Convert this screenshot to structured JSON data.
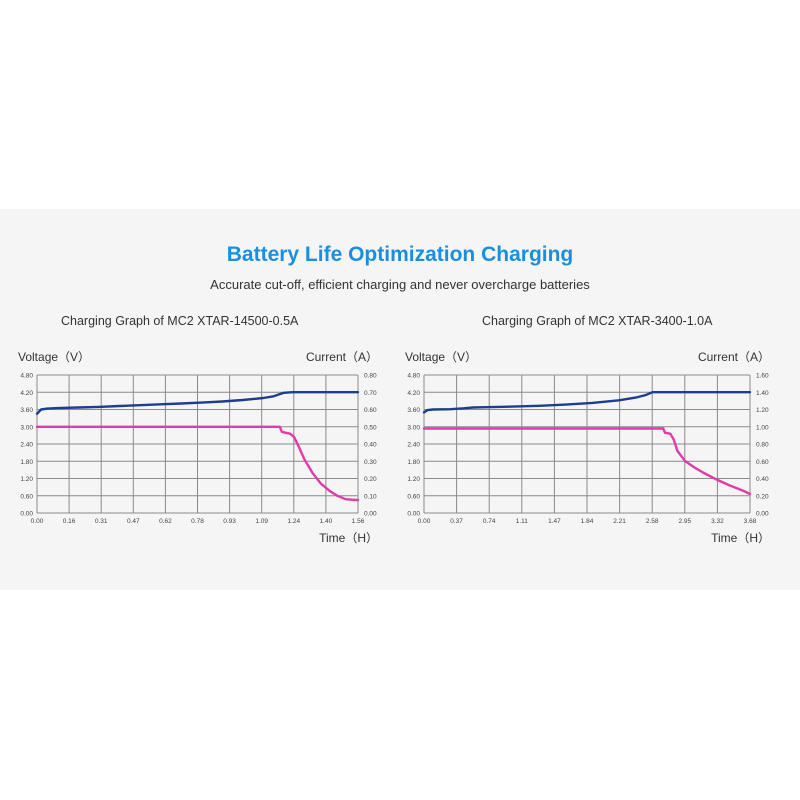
{
  "header": {
    "title": "Battery Life Optimization Charging",
    "subtitle": "Accurate cut-off, efficient charging and never overcharge batteries"
  },
  "colors": {
    "title": "#1a8fe0",
    "voltage_series": "#1e3d8f",
    "current_series": "#e23aa8",
    "grid": "#8a8a8a",
    "background_band": "#f5f5f5"
  },
  "chart_data": [
    {
      "type": "line",
      "title": "Charging Graph of MC2 XTAR-14500-0.5A",
      "ylabel": "Voltage（V）",
      "y2label": "Current（A）",
      "xlabel": "Time（H）",
      "x_ticks": [
        "0.00",
        "0.16",
        "0.31",
        "0.47",
        "0.62",
        "0.78",
        "0.93",
        "1.09",
        "1.24",
        "1.40",
        "1.56"
      ],
      "y_ticks": [
        "0.00",
        "0.60",
        "1.20",
        "1.80",
        "2.40",
        "3.00",
        "3.60",
        "4.20",
        "4.80"
      ],
      "y2_ticks": [
        "0.00",
        "0.10",
        "0.20",
        "0.30",
        "0.40",
        "0.50",
        "0.60",
        "0.70",
        "0.80"
      ],
      "xlim": [
        0,
        1.56
      ],
      "ylim": [
        0,
        4.8
      ],
      "y2lim": [
        0,
        0.8
      ],
      "grid": true,
      "series": [
        {
          "axis": "left",
          "x": [
            0,
            0.02,
            0.05,
            0.1,
            0.2,
            0.3,
            0.4,
            0.5,
            0.6,
            0.7,
            0.8,
            0.9,
            1.0,
            1.1,
            1.15,
            1.2,
            1.24,
            1.3,
            1.4,
            1.5,
            1.56
          ],
          "y": [
            3.45,
            3.6,
            3.63,
            3.65,
            3.67,
            3.69,
            3.72,
            3.75,
            3.78,
            3.81,
            3.84,
            3.88,
            3.93,
            4.0,
            4.06,
            4.18,
            4.2,
            4.2,
            4.2,
            4.2,
            4.2
          ]
        },
        {
          "axis": "right",
          "x": [
            0,
            0.2,
            0.4,
            0.6,
            0.8,
            1.0,
            1.18,
            1.19,
            1.23,
            1.25,
            1.27,
            1.3,
            1.34,
            1.38,
            1.42,
            1.46,
            1.5,
            1.53,
            1.56
          ],
          "y": [
            0.5,
            0.5,
            0.5,
            0.5,
            0.5,
            0.5,
            0.5,
            0.47,
            0.46,
            0.44,
            0.39,
            0.31,
            0.23,
            0.17,
            0.13,
            0.1,
            0.08,
            0.077,
            0.075
          ]
        }
      ]
    },
    {
      "type": "line",
      "title": "Charging Graph of MC2 XTAR-3400-1.0A",
      "ylabel": "Voltage（V）",
      "y2label": "Current（A）",
      "xlabel": "Time（H）",
      "x_ticks": [
        "0.00",
        "0.37",
        "0.74",
        "1.11",
        "1.47",
        "1.84",
        "2.21",
        "2.58",
        "2.95",
        "3.32",
        "3.68"
      ],
      "y_ticks": [
        "0.00",
        "0.60",
        "1.20",
        "1.80",
        "2.40",
        "3.00",
        "3.60",
        "4.20",
        "4.80"
      ],
      "y2_ticks": [
        "0.00",
        "0.20",
        "0.40",
        "0.60",
        "0.80",
        "1.00",
        "1.20",
        "1.40",
        "1.60"
      ],
      "xlim": [
        0,
        3.68
      ],
      "ylim": [
        0,
        4.8
      ],
      "y2lim": [
        0,
        1.6
      ],
      "grid": true,
      "series": [
        {
          "axis": "left",
          "x": [
            0,
            0.04,
            0.1,
            0.3,
            0.45,
            0.55,
            0.7,
            1.0,
            1.3,
            1.6,
            1.9,
            2.2,
            2.4,
            2.5,
            2.58,
            2.65,
            2.8,
            3.0,
            3.3,
            3.68
          ],
          "y": [
            3.5,
            3.58,
            3.6,
            3.61,
            3.64,
            3.67,
            3.68,
            3.7,
            3.73,
            3.77,
            3.83,
            3.92,
            4.02,
            4.1,
            4.2,
            4.2,
            4.2,
            4.2,
            4.2,
            4.2
          ]
        },
        {
          "axis": "right",
          "x": [
            0,
            0.5,
            1.0,
            1.5,
            2.0,
            2.5,
            2.7,
            2.72,
            2.78,
            2.82,
            2.86,
            2.95,
            3.05,
            3.15,
            3.3,
            3.45,
            3.6,
            3.68
          ],
          "y": [
            0.98,
            0.98,
            0.98,
            0.98,
            0.98,
            0.98,
            0.98,
            0.93,
            0.92,
            0.85,
            0.72,
            0.6,
            0.53,
            0.47,
            0.39,
            0.32,
            0.26,
            0.22
          ]
        }
      ]
    }
  ]
}
